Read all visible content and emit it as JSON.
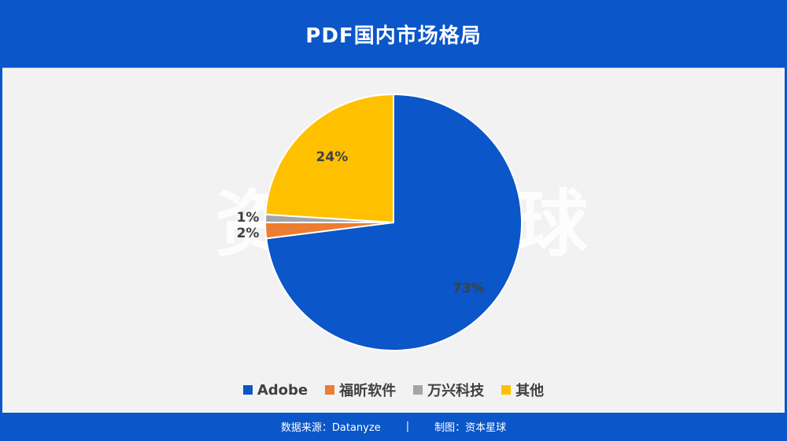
{
  "header": {
    "title": "PDF国内市场格局"
  },
  "watermark": {
    "left": "资",
    "right": "球"
  },
  "colors": {
    "brand_blue": "#0b56c8",
    "adobe": "#0b56c8",
    "foxit": "#ed7d31",
    "wondershare": "#a5a5a5",
    "other": "#ffc000"
  },
  "chart_data": {
    "type": "pie",
    "title": "PDF国内市场格局",
    "slices": [
      {
        "name": "Adobe",
        "value": 73,
        "label": "73%",
        "color": "#0b56c8"
      },
      {
        "name": "福昕软件",
        "value": 2,
        "label": "2%",
        "color": "#ed7d31"
      },
      {
        "name": "万兴科技",
        "value": 1,
        "label": "1%",
        "color": "#a5a5a5"
      },
      {
        "name": "其他",
        "value": 24,
        "label": "24%",
        "color": "#ffc000"
      }
    ],
    "legend": "bottom"
  },
  "footer": {
    "source": "数据来源：Datanyze",
    "separator": "|",
    "producer": "制图：资本星球"
  }
}
